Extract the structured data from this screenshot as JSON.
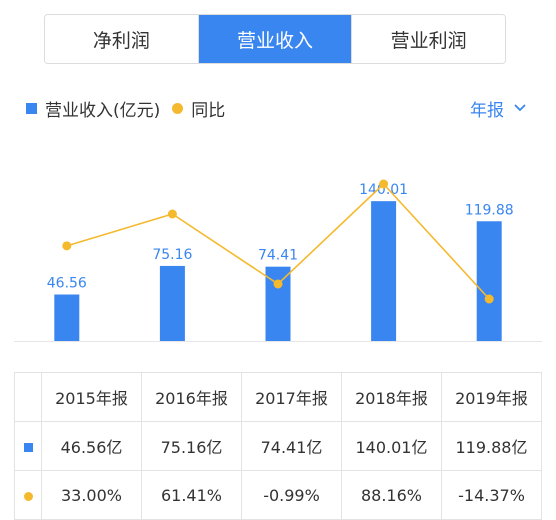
{
  "tabs": [
    {
      "label": "净利润",
      "active": false
    },
    {
      "label": "营业收入",
      "active": true
    },
    {
      "label": "营业利润",
      "active": false
    }
  ],
  "legend": {
    "bar_label": "营业收入(亿元)",
    "line_label": "同比"
  },
  "period_selector": {
    "label": "年报"
  },
  "colors": {
    "accent": "#3a86f0",
    "line": "#f5b92e",
    "positive": "#e04747",
    "negative": "#1fae6b"
  },
  "chart_data": {
    "type": "bar",
    "categories": [
      "2015年报",
      "2016年报",
      "2017年报",
      "2018年报",
      "2019年报"
    ],
    "series": [
      {
        "name": "营业收入(亿元)",
        "type": "bar",
        "values": [
          46.56,
          75.16,
          74.41,
          140.01,
          119.88
        ]
      },
      {
        "name": "同比",
        "type": "line",
        "values": [
          33.0,
          61.41,
          -0.99,
          88.16,
          -14.37
        ]
      }
    ],
    "data_labels": [
      "46.56",
      "75.16",
      "74.41",
      "140.01",
      "119.88"
    ]
  },
  "table": {
    "headers": [
      "2015年报",
      "2016年报",
      "2017年报",
      "2018年报",
      "2019年报"
    ],
    "revenue": [
      "46.56亿",
      "75.16亿",
      "74.41亿",
      "140.01亿",
      "119.88亿"
    ],
    "yoy": [
      "33.00%",
      "61.41%",
      "-0.99%",
      "88.16%",
      "-14.37%"
    ]
  }
}
